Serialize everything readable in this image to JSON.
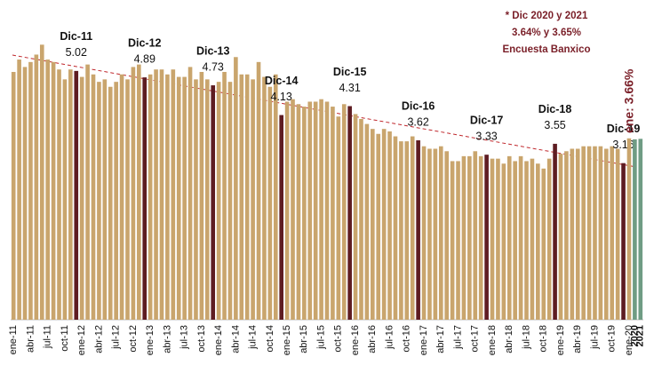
{
  "chart_data": {
    "type": "bar",
    "categories": [
      "ene-11",
      null,
      null,
      "abr-11",
      null,
      null,
      "jul-11",
      null,
      null,
      "oct-11",
      null,
      null,
      "ene-12",
      null,
      null,
      "abr-12",
      null,
      null,
      "jul-12",
      null,
      null,
      "oct-12",
      null,
      null,
      "ene-13",
      null,
      null,
      "abr-13",
      null,
      null,
      "jul-13",
      null,
      null,
      "oct-13",
      null,
      null,
      "ene-14",
      null,
      null,
      "abr-14",
      null,
      null,
      "jul-14",
      null,
      null,
      "oct-14",
      null,
      null,
      "ene-15",
      null,
      null,
      "abr-15",
      null,
      null,
      "jul-15",
      null,
      null,
      "oct-15",
      null,
      null,
      "ene-16",
      null,
      null,
      "abr-16",
      null,
      null,
      "jul-16",
      null,
      null,
      "oct-16",
      null,
      null,
      "ene-17",
      null,
      null,
      "abr-17",
      null,
      null,
      "jul-17",
      null,
      null,
      "oct-17",
      null,
      null,
      "ene-18",
      null,
      null,
      "abr-18",
      null,
      null,
      "jul-18",
      null,
      null,
      "oct-18",
      null,
      null,
      "ene-19",
      null,
      null,
      "abr-19",
      null,
      null,
      "jul-19",
      null,
      null,
      "oct-19",
      null,
      null,
      "ene-20",
      "2020",
      "2021"
    ],
    "values": [
      5.0,
      5.25,
      5.1,
      5.2,
      5.35,
      5.55,
      5.25,
      5.2,
      5.05,
      4.85,
      5.05,
      5.02,
      4.9,
      5.15,
      4.95,
      4.8,
      4.85,
      4.7,
      4.8,
      4.95,
      4.85,
      5.1,
      5.15,
      4.89,
      4.95,
      5.05,
      5.05,
      4.95,
      5.05,
      4.9,
      4.9,
      5.1,
      4.85,
      5.0,
      4.85,
      4.73,
      4.8,
      5.0,
      4.8,
      5.3,
      4.95,
      4.95,
      4.85,
      5.2,
      4.9,
      4.7,
      4.95,
      4.13,
      4.4,
      4.45,
      4.35,
      4.3,
      4.4,
      4.4,
      4.45,
      4.4,
      4.3,
      4.1,
      4.35,
      4.31,
      4.15,
      4.05,
      3.95,
      3.85,
      3.75,
      3.85,
      3.8,
      3.7,
      3.6,
      3.6,
      3.7,
      3.62,
      3.5,
      3.45,
      3.45,
      3.5,
      3.4,
      3.2,
      3.2,
      3.3,
      3.3,
      3.4,
      3.3,
      3.33,
      3.25,
      3.25,
      3.15,
      3.3,
      3.2,
      3.3,
      3.2,
      3.25,
      3.15,
      3.05,
      3.25,
      3.55,
      3.35,
      3.4,
      3.45,
      3.45,
      3.5,
      3.5,
      3.5,
      3.5,
      3.45,
      3.5,
      3.45,
      3.16,
      3.66,
      3.64,
      3.65
    ],
    "period_labels": [
      null,
      null,
      null,
      null,
      null,
      null,
      null,
      null,
      null,
      null,
      null,
      "Dic-11",
      null,
      null,
      null,
      null,
      null,
      null,
      null,
      null,
      null,
      null,
      null,
      "Dic-12",
      null,
      null,
      null,
      null,
      null,
      null,
      null,
      null,
      null,
      null,
      null,
      "Dic-13",
      null,
      null,
      null,
      null,
      null,
      null,
      null,
      null,
      null,
      null,
      null,
      "Dic-14",
      null,
      null,
      null,
      null,
      null,
      null,
      null,
      null,
      null,
      null,
      null,
      "Dic-15",
      null,
      null,
      null,
      null,
      null,
      null,
      null,
      null,
      null,
      null,
      null,
      "Dic-16",
      null,
      null,
      null,
      null,
      null,
      null,
      null,
      null,
      null,
      null,
      null,
      "Dic-17",
      null,
      null,
      null,
      null,
      null,
      null,
      null,
      null,
      null,
      null,
      null,
      "Dic-18",
      null,
      null,
      null,
      null,
      null,
      null,
      null,
      null,
      null,
      null,
      null,
      "Dic-19",
      null,
      null,
      null
    ],
    "bar_colors": [
      "#c9a56d",
      "#c9a56d",
      "#c9a56d",
      "#c9a56d",
      "#c9a56d",
      "#c9a56d",
      "#c9a56d",
      "#c9a56d",
      "#c9a56d",
      "#c9a56d",
      "#c9a56d",
      "#5e1c22",
      "#c9a56d",
      "#c9a56d",
      "#c9a56d",
      "#c9a56d",
      "#c9a56d",
      "#c9a56d",
      "#c9a56d",
      "#c9a56d",
      "#c9a56d",
      "#c9a56d",
      "#c9a56d",
      "#5e1c22",
      "#c9a56d",
      "#c9a56d",
      "#c9a56d",
      "#c9a56d",
      "#c9a56d",
      "#c9a56d",
      "#c9a56d",
      "#c9a56d",
      "#c9a56d",
      "#c9a56d",
      "#c9a56d",
      "#5e1c22",
      "#c9a56d",
      "#c9a56d",
      "#c9a56d",
      "#c9a56d",
      "#c9a56d",
      "#c9a56d",
      "#c9a56d",
      "#c9a56d",
      "#c9a56d",
      "#c9a56d",
      "#c9a56d",
      "#5e1c22",
      "#c9a56d",
      "#c9a56d",
      "#c9a56d",
      "#c9a56d",
      "#c9a56d",
      "#c9a56d",
      "#c9a56d",
      "#c9a56d",
      "#c9a56d",
      "#c9a56d",
      "#c9a56d",
      "#5e1c22",
      "#c9a56d",
      "#c9a56d",
      "#c9a56d",
      "#c9a56d",
      "#c9a56d",
      "#c9a56d",
      "#c9a56d",
      "#c9a56d",
      "#c9a56d",
      "#c9a56d",
      "#c9a56d",
      "#5e1c22",
      "#c9a56d",
      "#c9a56d",
      "#c9a56d",
      "#c9a56d",
      "#c9a56d",
      "#c9a56d",
      "#c9a56d",
      "#c9a56d",
      "#c9a56d",
      "#c9a56d",
      "#c9a56d",
      "#5e1c22",
      "#c9a56d",
      "#c9a56d",
      "#c9a56d",
      "#c9a56d",
      "#c9a56d",
      "#c9a56d",
      "#c9a56d",
      "#c9a56d",
      "#c9a56d",
      "#c9a56d",
      "#c9a56d",
      "#5e1c22",
      "#c9a56d",
      "#c9a56d",
      "#c9a56d",
      "#c9a56d",
      "#c9a56d",
      "#c9a56d",
      "#c9a56d",
      "#c9a56d",
      "#c9a56d",
      "#c9a56d",
      "#c9a56d",
      "#5e1c22",
      "#c9a56d",
      "#6f9c84",
      "#6f9c84"
    ],
    "annotation": "ene: 3.66%",
    "note": [
      "* Dic 2020 y 2021",
      "3.64% y 3.65%",
      "Encuesta Banxico"
    ]
  }
}
